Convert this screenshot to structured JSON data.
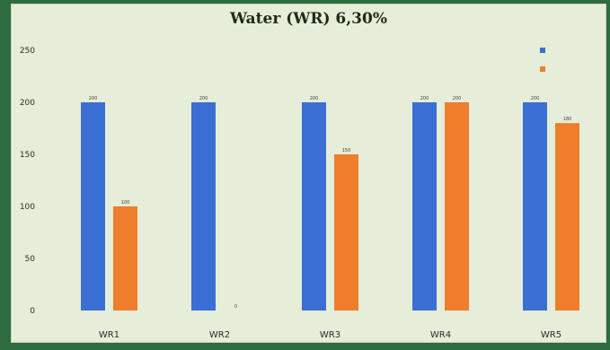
{
  "chart_data": {
    "type": "bar",
    "title": "Water (WR) 6,30%",
    "categories": [
      "WR1",
      "WR2",
      "WR3",
      "WR4",
      "WR5"
    ],
    "series": [
      {
        "name": "",
        "color": "#3b6fd4",
        "values": [
          200,
          200,
          200,
          200,
          200
        ]
      },
      {
        "name": "",
        "color": "#ef7d2c",
        "values": [
          100,
          0,
          150,
          200,
          180
        ]
      }
    ],
    "ylim": [
      0,
      250
    ],
    "yticks": [
      0,
      50,
      100,
      150,
      200,
      250
    ],
    "grid": false,
    "legend": "top-right",
    "xlabel": "",
    "ylabel": ""
  }
}
